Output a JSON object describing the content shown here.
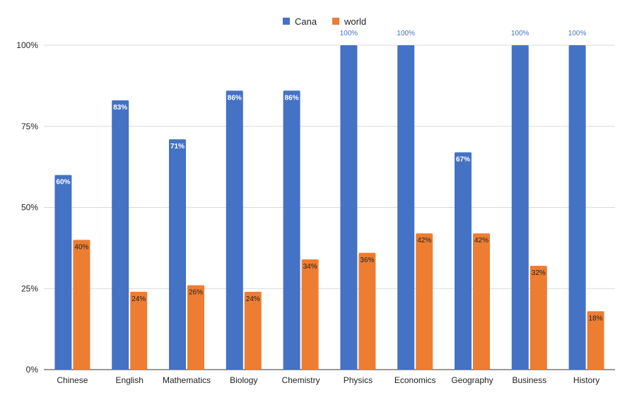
{
  "chart_data": {
    "type": "bar",
    "categories": [
      "Chinese",
      "English",
      "Mathematics",
      "Biology",
      "Chemistry",
      "Physics",
      "Economics",
      "Geography",
      "Business",
      "History"
    ],
    "series": [
      {
        "name": "Cana",
        "color": "#4472c4",
        "values": [
          60,
          83,
          71,
          86,
          86,
          100,
          100,
          67,
          100,
          100
        ]
      },
      {
        "name": "world",
        "color": "#ed7d31",
        "values": [
          40,
          24,
          26,
          24,
          34,
          36,
          42,
          42,
          32,
          18
        ]
      }
    ],
    "ylim": [
      0,
      100
    ],
    "yticks": [
      0,
      25,
      50,
      75,
      100
    ],
    "ytick_suffix": "%",
    "value_suffix": "%",
    "grid": true,
    "legend": "top-center"
  }
}
